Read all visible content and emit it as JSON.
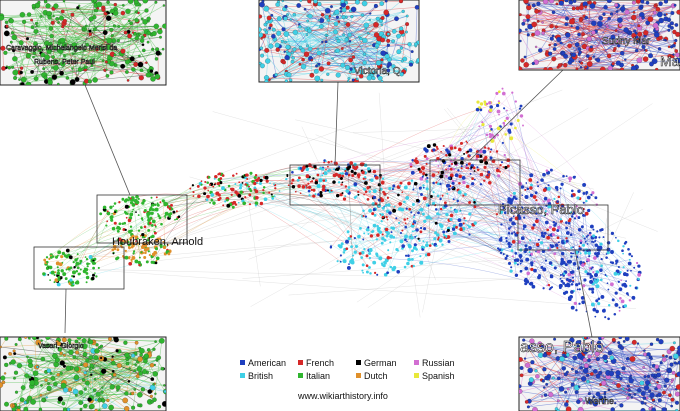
{
  "labels": {
    "houbraken": "Houbraken, Arnold",
    "picasso": "Picasso, Pablo",
    "url": "www.wikiarthistory.info"
  },
  "insets": {
    "top_left": {
      "texts": [
        "Caravaggio, Michelangelo Merisi da",
        "Rubens, Peter Paul"
      ]
    },
    "top_center": {
      "texts": [
        "Victoria, Q"
      ]
    },
    "top_right": {
      "texts": [
        "Ma",
        "Sudny Mar"
      ]
    },
    "bottom_left": {
      "texts": [
        "Vasari, Giorgio"
      ]
    },
    "bottom_right": {
      "texts": [
        "asso, Pablo",
        "Werthe"
      ]
    }
  },
  "legend": [
    {
      "name": "American",
      "color": "#1f3fbf"
    },
    {
      "name": "French",
      "color": "#d62828"
    },
    {
      "name": "German",
      "color": "#000000"
    },
    {
      "name": "Russian",
      "color": "#d26fd2"
    },
    {
      "name": "British",
      "color": "#3fd0e6"
    },
    {
      "name": "Italian",
      "color": "#2fb52f"
    },
    {
      "name": "Dutch",
      "color": "#e0902a"
    },
    {
      "name": "Spanish",
      "color": "#e8e83a"
    }
  ]
}
